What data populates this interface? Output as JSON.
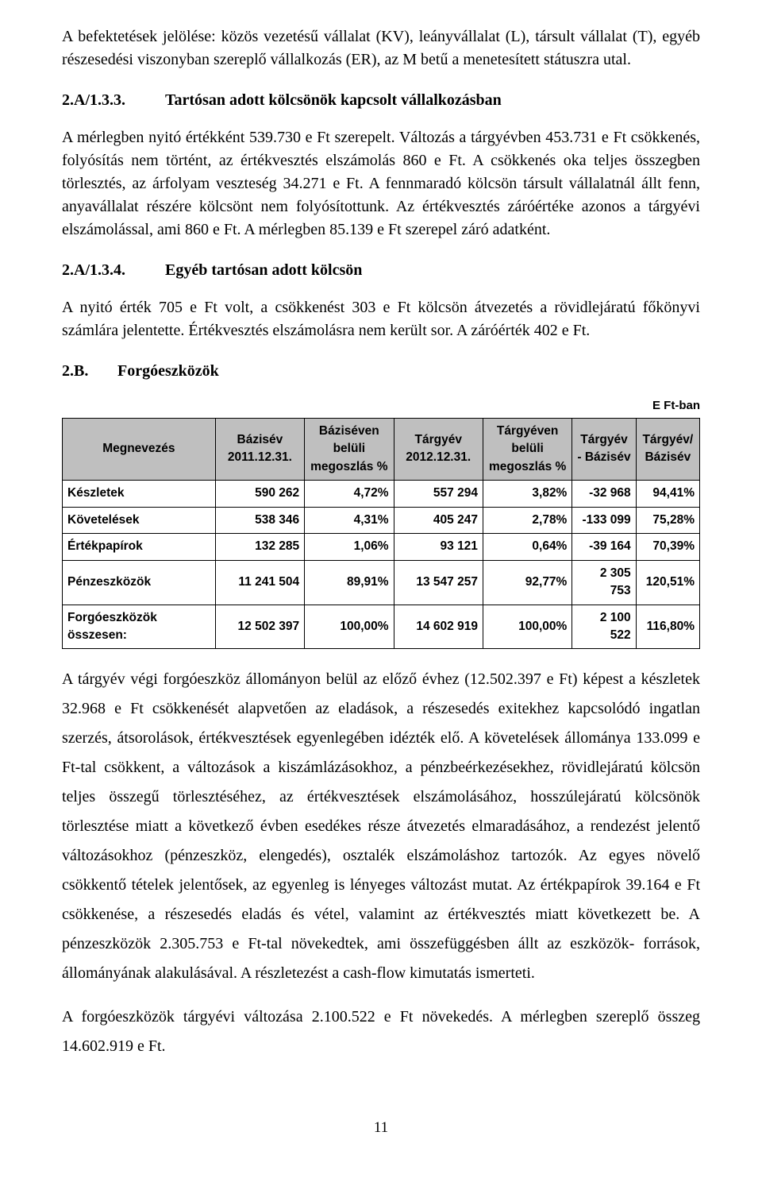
{
  "intro_para": "A befektetések jelölése: közös vezetésű vállalat (KV), leányvállalat (L), társult vállalat (T), egyéb részesedési viszonyban szereplő vállalkozás (ER), az M betű a menetesített státuszra utal.",
  "sec_133": {
    "num": "2.A/1.3.3.",
    "title": "Tartósan adott kölcsönök kapcsolt vállalkozásban"
  },
  "para_133": "A mérlegben nyitó értékként 539.730 e Ft szerepelt. Változás a tárgyévben 453.731 e Ft csökkenés, folyósítás nem történt, az értékvesztés elszámolás 860 e Ft. A csökkenés oka teljes összegben törlesztés, az árfolyam veszteség 34.271 e Ft.  A fennmaradó kölcsön társult vállalatnál állt fenn, anyavállalat részére kölcsönt nem folyósítottunk. Az értékvesztés záróértéke azonos a tárgyévi elszámolással, ami 860 e Ft. A mérlegben 85.139 e Ft szerepel záró adatként.",
  "sec_134": {
    "num": "2.A/1.3.4.",
    "title": "Egyéb tartósan adott kölcsön"
  },
  "para_134": "A nyitó érték 705 e Ft volt, a csökkenést 303 e Ft kölcsön átvezetés a rövidlejáratú főkönyvi számlára jelentette. Értékvesztés elszámolásra nem került sor. A záróérték 402 e Ft.",
  "sec_2b": {
    "num": "2.B.",
    "title": "Forgóeszközök"
  },
  "table": {
    "unit": "E Ft-ban",
    "columns": [
      {
        "key": "megnevezes",
        "label": "Megnevezés",
        "align": "left",
        "width": "24%"
      },
      {
        "key": "bazisev",
        "label": "Bázisév 2011.12.31.",
        "align": "right",
        "width": "14%"
      },
      {
        "key": "bazis_pct",
        "label": "Báziséven belüli megoszlás %",
        "align": "right",
        "width": "14%"
      },
      {
        "key": "targyev",
        "label": "Tárgyév 2012.12.31.",
        "align": "right",
        "width": "14%"
      },
      {
        "key": "targy_pct",
        "label": "Tárgyéven belüli megoszlás %",
        "align": "right",
        "width": "14%"
      },
      {
        "key": "diff",
        "label": "Tárgyév - Bázisév",
        "align": "right",
        "width": "10%"
      },
      {
        "key": "ratio",
        "label": "Tárgyév/ Bázisév",
        "align": "right",
        "width": "10%"
      }
    ],
    "rows": [
      {
        "megnevezes": "Készletek",
        "bazisev": "590 262",
        "bazis_pct": "4,72%",
        "targyev": "557 294",
        "targy_pct": "3,82%",
        "diff": "-32 968",
        "ratio": "94,41%"
      },
      {
        "megnevezes": "Követelések",
        "bazisev": "538 346",
        "bazis_pct": "4,31%",
        "targyev": "405 247",
        "targy_pct": "2,78%",
        "diff": "-133 099",
        "ratio": "75,28%"
      },
      {
        "megnevezes": "Értékpapírok",
        "bazisev": "132 285",
        "bazis_pct": "1,06%",
        "targyev": "93 121",
        "targy_pct": "0,64%",
        "diff": "-39 164",
        "ratio": "70,39%"
      },
      {
        "megnevezes": "Pénzeszközök",
        "bazisev": "11 241 504",
        "bazis_pct": "89,91%",
        "targyev": "13 547 257",
        "targy_pct": "92,77%",
        "diff": "2 305 753",
        "ratio": "120,51%"
      },
      {
        "megnevezes": "Forgóeszközök összesen:",
        "bazisev": "12 502 397",
        "bazis_pct": "100,00%",
        "targyev": "14 602 919",
        "targy_pct": "100,00%",
        "diff": "2 100 522",
        "ratio": "116,80%"
      }
    ]
  },
  "post_para1": "A tárgyév végi forgóeszköz állományon belül az előző évhez (12.502.397 e Ft) képest a készletek 32.968 e Ft csökkenését alapvetően az eladások, a részesedés exitekhez kapcsolódó ingatlan szerzés, átsorolások, értékvesztések egyenlegében idézték elő. A követelések állománya 133.099 e Ft-tal csökkent, a változások a kiszámlázásokhoz, a pénzbeérkezésekhez, rövidlejáratú kölcsön teljes összegű törlesztéséhez, az értékvesztések elszámolásához, hosszúlejáratú kölcsönök törlesztése miatt a következő évben esedékes része átvezetés elmaradásához, a rendezést jelentő változásokhoz (pénzeszköz, elengedés), osztalék elszámoláshoz tartozók. Az egyes növelő csökkentő tételek jelentősek, az egyenleg is lényeges változást mutat. Az értékpapírok 39.164 e Ft csökkenése, a részesedés eladás és vétel, valamint az értékvesztés miatt következett be. A pénzeszközök 2.305.753 e Ft-tal növekedtek, ami összefüggésben állt az eszközök- források, állományának alakulásával. A részletezést a cash-flow kimutatás ismerteti.",
  "post_para2": "A forgóeszközök tárgyévi változása 2.100.522 e Ft növekedés. A mérlegben szereplő összeg 14.602.919 e Ft.",
  "page_num": "11"
}
